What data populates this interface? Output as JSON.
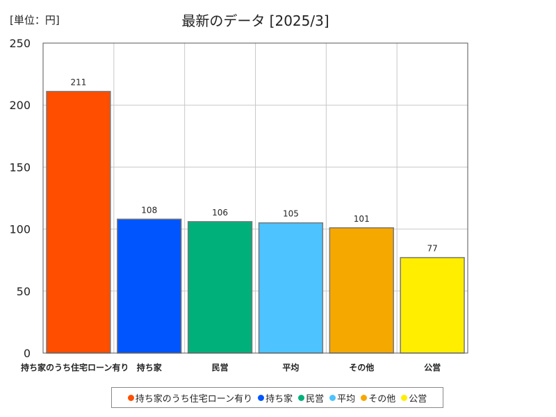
{
  "chart_data": {
    "type": "bar",
    "title": "最新のデータ [2025/3]",
    "unit_label": "[単位：円]",
    "categories": [
      "持ち家のうち住宅ローン有り",
      "持ち家",
      "民営",
      "平均",
      "その他",
      "公営"
    ],
    "values": [
      211,
      108,
      106,
      105,
      101,
      77
    ],
    "data_labels": [
      "211",
      "108",
      "106",
      "105",
      "101",
      "77"
    ],
    "colors": [
      "#ff4e00",
      "#0055ff",
      "#00b07a",
      "#4dc3ff",
      "#f5a800",
      "#ffee00"
    ],
    "ylim": [
      0,
      250
    ],
    "yticks": [
      0,
      50,
      100,
      150,
      200,
      250
    ],
    "ytick_labels": [
      "0",
      "50",
      "100",
      "150",
      "200",
      "250"
    ],
    "grid": true,
    "legend_position": "bottom"
  }
}
